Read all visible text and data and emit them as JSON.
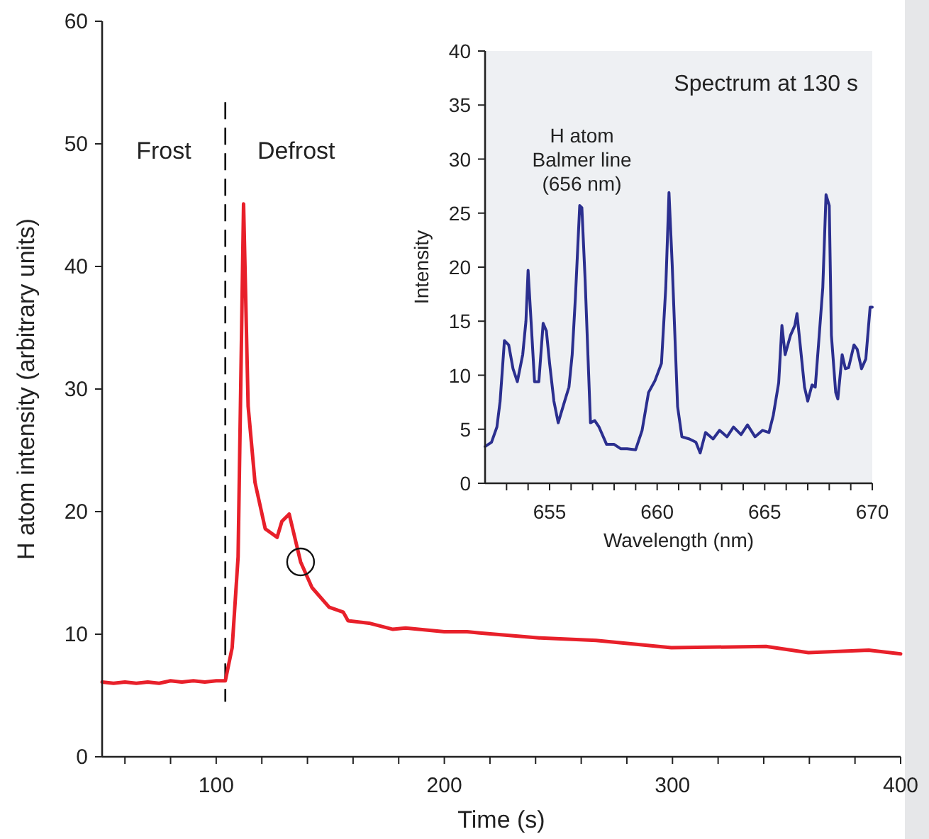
{
  "chart_data": [
    {
      "type": "line",
      "xlabel": "Time (s)",
      "ylabel": "H atom intensity (arbitrary units)",
      "xlim": [
        50,
        400
      ],
      "ylim": [
        0,
        60
      ],
      "xticks": [
        {
          "value": 60,
          "label": null
        },
        {
          "value": 80,
          "label": null
        },
        100,
        {
          "value": 120,
          "label": null
        },
        {
          "value": 140,
          "label": null
        },
        {
          "value": 160,
          "label": null
        },
        {
          "value": 180,
          "label": null
        },
        200,
        {
          "value": 220,
          "label": null
        },
        {
          "value": 240,
          "label": null
        },
        {
          "value": 260,
          "label": null
        },
        {
          "value": 280,
          "label": null
        },
        300,
        {
          "value": 320,
          "label": null
        },
        {
          "value": 340,
          "label": null
        },
        {
          "value": 360,
          "label": null
        },
        {
          "value": 380,
          "label": null
        },
        400
      ],
      "yticks": [
        0,
        10,
        20,
        30,
        40,
        50,
        60
      ],
      "grid": false,
      "marker": "none",
      "line_style": "solid",
      "ref_lines": [
        {
          "axis": "x",
          "value": 104,
          "line_style": "dashed",
          "color": "#000000"
        }
      ],
      "annotations": [
        "Frost",
        "Defrost"
      ],
      "series": [
        {
          "color": "#e8202a",
          "x": [
            50,
            55,
            60,
            65,
            70,
            75,
            80,
            85,
            90,
            95,
            100,
            104,
            107,
            109.6,
            112,
            114,
            117,
            121.5,
            126.7,
            128.8,
            132,
            137,
            142,
            149.5,
            155.7,
            157.8,
            167,
            177.5,
            183,
            200,
            210,
            215.5,
            241.6,
            266.5,
            299.5,
            341,
            359.6,
            386,
            400
          ],
          "values": [
            6.1,
            6.0,
            6.1,
            6.0,
            6.1,
            6.0,
            6.2,
            6.1,
            6.2,
            6.1,
            6.2,
            6.2,
            8.9,
            16.3,
            45.1,
            28.6,
            22.4,
            18.6,
            17.9,
            19.2,
            19.8,
            15.9,
            13.8,
            12.2,
            11.8,
            11.1,
            10.9,
            10.4,
            10.5,
            10.2,
            10.2,
            10.1,
            9.7,
            9.5,
            8.9,
            9.0,
            8.5,
            8.7,
            8.4
          ]
        }
      ]
    },
    {
      "type": "line",
      "title": "Spectrum at 130 s",
      "xlabel": "Wavelength (nm)",
      "ylabel": "Intensity",
      "xlim": [
        652,
        670
      ],
      "ylim": [
        0,
        40
      ],
      "xticks": [
        {
          "value": 653,
          "label": null
        },
        {
          "value": 654,
          "label": null
        },
        655,
        {
          "value": 656,
          "label": null
        },
        {
          "value": 657,
          "label": null
        },
        {
          "value": 658,
          "label": null
        },
        {
          "value": 659,
          "label": null
        },
        660,
        {
          "value": 661,
          "label": null
        },
        {
          "value": 662,
          "label": null
        },
        {
          "value": 663,
          "label": null
        },
        {
          "value": 664,
          "label": null
        },
        665,
        {
          "value": 666,
          "label": null
        },
        {
          "value": 667,
          "label": null
        },
        {
          "value": 668,
          "label": null
        },
        {
          "value": 669,
          "label": null
        },
        670
      ],
      "yticks": [
        0,
        5,
        10,
        15,
        20,
        25,
        30,
        35,
        40
      ],
      "grid": false,
      "marker": "none",
      "line_style": "solid",
      "annotations": [
        {
          "text": "H atom\nBalmer line\n(656 nm)",
          "x": 656.5,
          "y": 25.5
        }
      ],
      "series": [
        {
          "color": "#2b2f8f",
          "x": [
            652,
            652.3,
            652.55,
            652.7,
            652.9,
            653.1,
            653.3,
            653.5,
            653.75,
            653.9,
            654.0,
            654.15,
            654.3,
            654.5,
            654.7,
            654.85,
            655.0,
            655.2,
            655.4,
            655.7,
            655.9,
            656.05,
            656.2,
            656.4,
            656.5,
            656.65,
            656.9,
            657.1,
            657.3,
            657.65,
            658.0,
            658.3,
            658.6,
            659.0,
            659.3,
            659.6,
            659.9,
            660.2,
            660.4,
            660.55,
            660.7,
            660.95,
            661.15,
            661.5,
            661.8,
            662.0,
            662.25,
            662.6,
            662.9,
            663.25,
            663.55,
            663.9,
            664.2,
            664.55,
            664.9,
            665.2,
            665.4,
            665.65,
            665.8,
            665.95,
            666.2,
            666.4,
            666.5,
            666.65,
            666.85,
            667.0,
            667.2,
            667.35,
            667.5,
            667.7,
            667.85,
            668.0,
            668.1,
            668.3,
            668.4,
            668.6,
            668.75,
            668.9,
            669.15,
            669.3,
            669.5,
            669.7,
            669.9,
            670.0
          ],
          "values": [
            3.4,
            3.8,
            5.2,
            7.6,
            13.2,
            12.8,
            10.6,
            9.4,
            11.9,
            15,
            19.7,
            14.6,
            9.4,
            9.4,
            14.8,
            14.1,
            11.1,
            7.6,
            5.6,
            7.6,
            8.9,
            11.9,
            17.2,
            25.7,
            25.5,
            18.9,
            5.6,
            5.8,
            5.2,
            3.6,
            3.6,
            3.2,
            3.2,
            3.1,
            4.9,
            8.4,
            9.5,
            11.1,
            18.1,
            26.9,
            20.2,
            7.1,
            4.3,
            4.1,
            3.8,
            2.8,
            4.7,
            4.1,
            4.9,
            4.3,
            5.2,
            4.5,
            5.4,
            4.3,
            4.9,
            4.7,
            6.3,
            9.3,
            14.6,
            11.9,
            13.7,
            14.6,
            15.7,
            12.8,
            8.9,
            7.6,
            9.1,
            8.9,
            12.8,
            18.1,
            26.7,
            25.7,
            13.7,
            8.4,
            7.8,
            11.9,
            10.6,
            10.7,
            12.8,
            12.4,
            10.6,
            11.5,
            16.3,
            16.3
          ]
        }
      ]
    }
  ]
}
